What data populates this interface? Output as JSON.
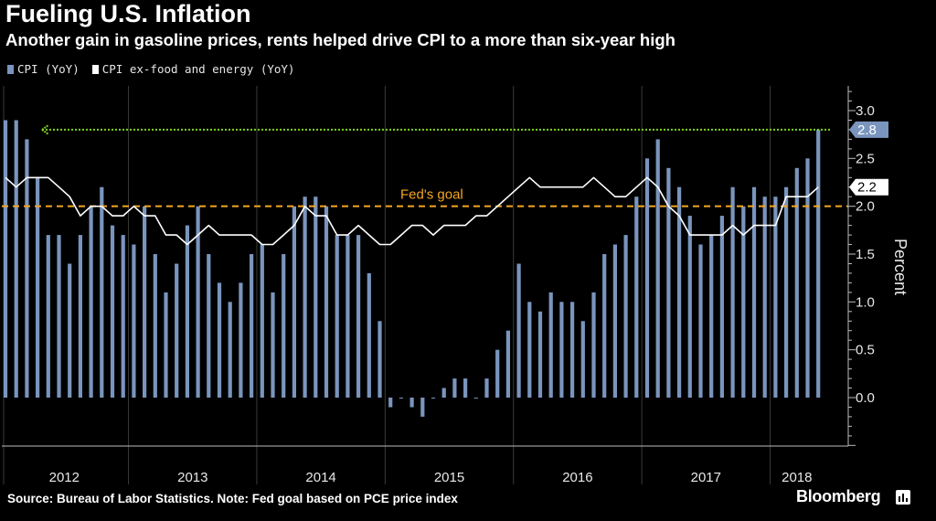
{
  "title": "Fueling U.S. Inflation",
  "subtitle": "Another gain in gasoline prices, rents helped drive CPI to a more than six-year high",
  "legend": [
    {
      "label": "CPI (YoY)",
      "color": "#7a95bd"
    },
    {
      "label": "CPI ex-food and energy (YoY)",
      "color": "#ffffff"
    }
  ],
  "source": "Source: Bureau of Labor Statistics. Note: Fed goal based on PCE price index",
  "brand": "Bloomberg",
  "chart_data": {
    "type": "bar",
    "title": "Fueling U.S. Inflation",
    "ylabel": "Percent",
    "ylim": [
      -0.5,
      3.2
    ],
    "yticks": [
      "3.0",
      "2.5",
      "2.0",
      "1.5",
      "1.0",
      "0.5",
      "0.0"
    ],
    "ytick_values": [
      3.0,
      2.5,
      2.0,
      1.5,
      1.0,
      0.5,
      0.0
    ],
    "years": [
      "2012",
      "2013",
      "2014",
      "2015",
      "2016",
      "2017",
      "2018"
    ],
    "fed_goal": {
      "value": 2.0,
      "label": "Fed's goal"
    },
    "callouts": [
      {
        "label": "2.8",
        "value": 2.8,
        "series": "CPI (YoY)"
      },
      {
        "label": "2.2",
        "value": 2.2,
        "series": "CPI ex-food and energy (YoY)"
      }
    ],
    "series": [
      {
        "name": "CPI (YoY)",
        "type": "bar",
        "color": "#7a95bd",
        "values": [
          2.9,
          2.9,
          2.7,
          2.3,
          1.7,
          1.7,
          1.4,
          1.7,
          2.0,
          2.2,
          1.8,
          1.7,
          1.6,
          2.0,
          1.5,
          1.1,
          1.4,
          1.8,
          2.0,
          1.5,
          1.2,
          1.0,
          1.2,
          1.5,
          1.6,
          1.1,
          1.5,
          2.0,
          2.1,
          2.1,
          2.0,
          1.7,
          1.7,
          1.7,
          1.3,
          0.8,
          -0.1,
          0.0,
          -0.1,
          -0.2,
          0.0,
          0.1,
          0.2,
          0.2,
          0.0,
          0.2,
          0.5,
          0.7,
          1.4,
          1.0,
          0.9,
          1.1,
          1.0,
          1.0,
          0.8,
          1.1,
          1.5,
          1.6,
          1.7,
          2.1,
          2.5,
          2.7,
          2.4,
          2.2,
          1.9,
          1.6,
          1.7,
          1.9,
          2.2,
          2.0,
          2.2,
          2.1,
          2.1,
          2.2,
          2.4,
          2.5,
          2.8
        ]
      },
      {
        "name": "CPI ex-food and energy (YoY)",
        "type": "line",
        "color": "#ffffff",
        "values": [
          2.3,
          2.2,
          2.3,
          2.3,
          2.3,
          2.2,
          2.1,
          1.9,
          2.0,
          2.0,
          1.9,
          1.9,
          2.0,
          1.9,
          1.9,
          1.7,
          1.7,
          1.6,
          1.7,
          1.8,
          1.7,
          1.7,
          1.7,
          1.7,
          1.6,
          1.6,
          1.7,
          1.8,
          2.0,
          1.9,
          1.9,
          1.7,
          1.7,
          1.8,
          1.7,
          1.6,
          1.6,
          1.7,
          1.8,
          1.8,
          1.7,
          1.8,
          1.8,
          1.8,
          1.9,
          1.9,
          2.0,
          2.1,
          2.2,
          2.3,
          2.2,
          2.2,
          2.2,
          2.2,
          2.2,
          2.3,
          2.2,
          2.1,
          2.1,
          2.2,
          2.3,
          2.2,
          2.0,
          1.9,
          1.7,
          1.7,
          1.7,
          1.7,
          1.8,
          1.7,
          1.8,
          1.8,
          1.8,
          2.1,
          2.1,
          2.1,
          2.2
        ]
      }
    ]
  }
}
